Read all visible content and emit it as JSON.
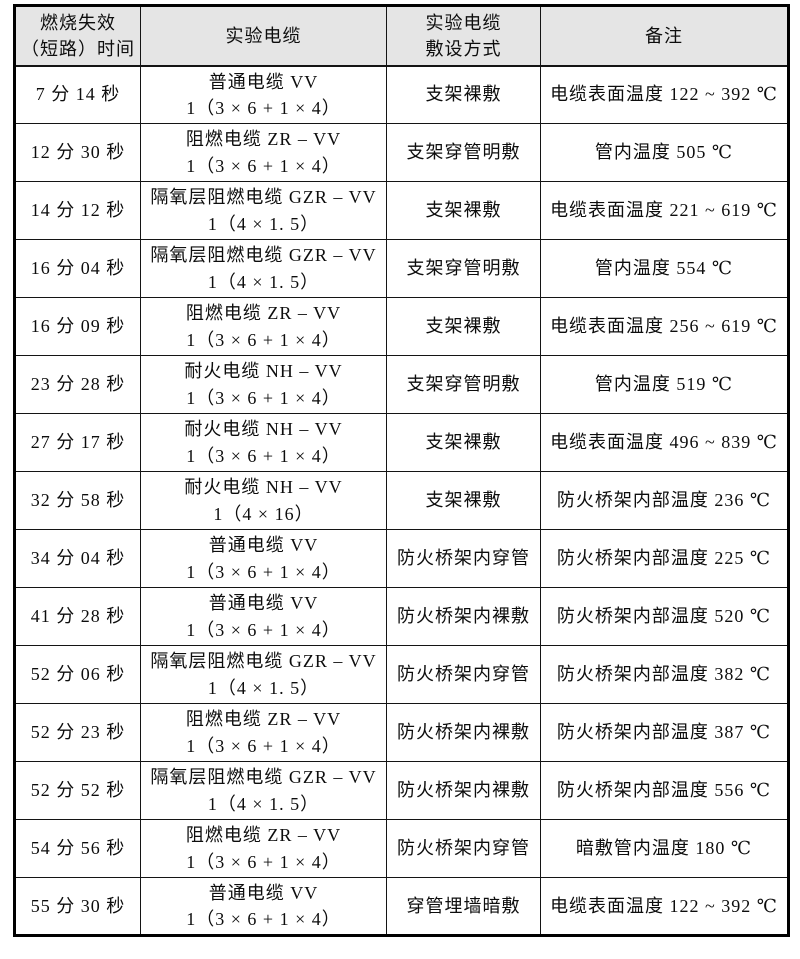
{
  "table": {
    "headers": [
      {
        "lines": [
          "燃烧失效",
          "（短路）时间"
        ]
      },
      {
        "lines": [
          "实验电缆"
        ]
      },
      {
        "lines": [
          "实验电缆",
          "敷设方式"
        ]
      },
      {
        "lines": [
          "备注"
        ]
      }
    ],
    "rows": [
      {
        "time": "7 分 14 秒",
        "cable_name": "普通电缆 VV",
        "cable_spec": "1（3 × 6 + 1 × 4）",
        "laying_method": "支架裸敷",
        "remark": "电缆表面温度 122 ~ 392 ℃"
      },
      {
        "time": "12 分 30 秒",
        "cable_name": "阻燃电缆 ZR – VV",
        "cable_spec": "1（3 × 6 + 1 × 4）",
        "laying_method": "支架穿管明敷",
        "remark": "管内温度 505 ℃"
      },
      {
        "time": "14 分 12 秒",
        "cable_name": "隔氧层阻燃电缆 GZR – VV",
        "cable_spec": "1（4 × 1. 5）",
        "laying_method": "支架裸敷",
        "remark": "电缆表面温度 221 ~ 619 ℃"
      },
      {
        "time": "16 分 04 秒",
        "cable_name": "隔氧层阻燃电缆 GZR – VV",
        "cable_spec": "1（4 × 1. 5）",
        "laying_method": "支架穿管明敷",
        "remark": "管内温度 554 ℃"
      },
      {
        "time": "16 分 09 秒",
        "cable_name": "阻燃电缆 ZR – VV",
        "cable_spec": "1（3 × 6 + 1 × 4）",
        "laying_method": "支架裸敷",
        "remark": "电缆表面温度 256 ~ 619 ℃"
      },
      {
        "time": "23 分 28 秒",
        "cable_name": "耐火电缆 NH – VV",
        "cable_spec": "1（3 × 6 + 1 × 4）",
        "laying_method": "支架穿管明敷",
        "remark": "管内温度 519 ℃"
      },
      {
        "time": "27 分 17 秒",
        "cable_name": "耐火电缆 NH – VV",
        "cable_spec": "1（3 × 6 + 1 × 4）",
        "laying_method": "支架裸敷",
        "remark": "电缆表面温度 496 ~ 839 ℃"
      },
      {
        "time": "32 分 58 秒",
        "cable_name": "耐火电缆 NH – VV",
        "cable_spec": "1（4 × 16）",
        "laying_method": "支架裸敷",
        "remark": "防火桥架内部温度 236 ℃"
      },
      {
        "time": "34 分 04 秒",
        "cable_name": "普通电缆 VV",
        "cable_spec": "1（3 × 6 + 1 × 4）",
        "laying_method": "防火桥架内穿管",
        "remark": "防火桥架内部温度 225 ℃"
      },
      {
        "time": "41 分 28 秒",
        "cable_name": "普通电缆 VV",
        "cable_spec": "1（3 × 6 + 1 × 4）",
        "laying_method": "防火桥架内裸敷",
        "remark": "防火桥架内部温度 520 ℃"
      },
      {
        "time": "52 分 06 秒",
        "cable_name": "隔氧层阻燃电缆 GZR – VV",
        "cable_spec": "1（4 × 1. 5）",
        "laying_method": "防火桥架内穿管",
        "remark": "防火桥架内部温度 382 ℃"
      },
      {
        "time": "52 分 23 秒",
        "cable_name": "阻燃电缆 ZR – VV",
        "cable_spec": "1（3 × 6 + 1 × 4）",
        "laying_method": "防火桥架内裸敷",
        "remark": "防火桥架内部温度 387 ℃"
      },
      {
        "time": "52 分 52 秒",
        "cable_name": "隔氧层阻燃电缆 GZR – VV",
        "cable_spec": "1（4 × 1. 5）",
        "laying_method": "防火桥架内裸敷",
        "remark": "防火桥架内部温度 556 ℃"
      },
      {
        "time": "54 分 56 秒",
        "cable_name": "阻燃电缆 ZR – VV",
        "cable_spec": "1（3 × 6 + 1 × 4）",
        "laying_method": "防火桥架内穿管",
        "remark": "暗敷管内温度 180 ℃"
      },
      {
        "time": "55 分 30 秒",
        "cable_name": "普通电缆 VV",
        "cable_spec": "1（3 × 6 + 1 × 4）",
        "laying_method": "穿管埋墙暗敷",
        "remark": "电缆表面温度 122 ~ 392 ℃"
      }
    ],
    "colors": {
      "header_bg": "#e5e5e5",
      "border": "#141414",
      "text": "#0d0d0d"
    }
  }
}
